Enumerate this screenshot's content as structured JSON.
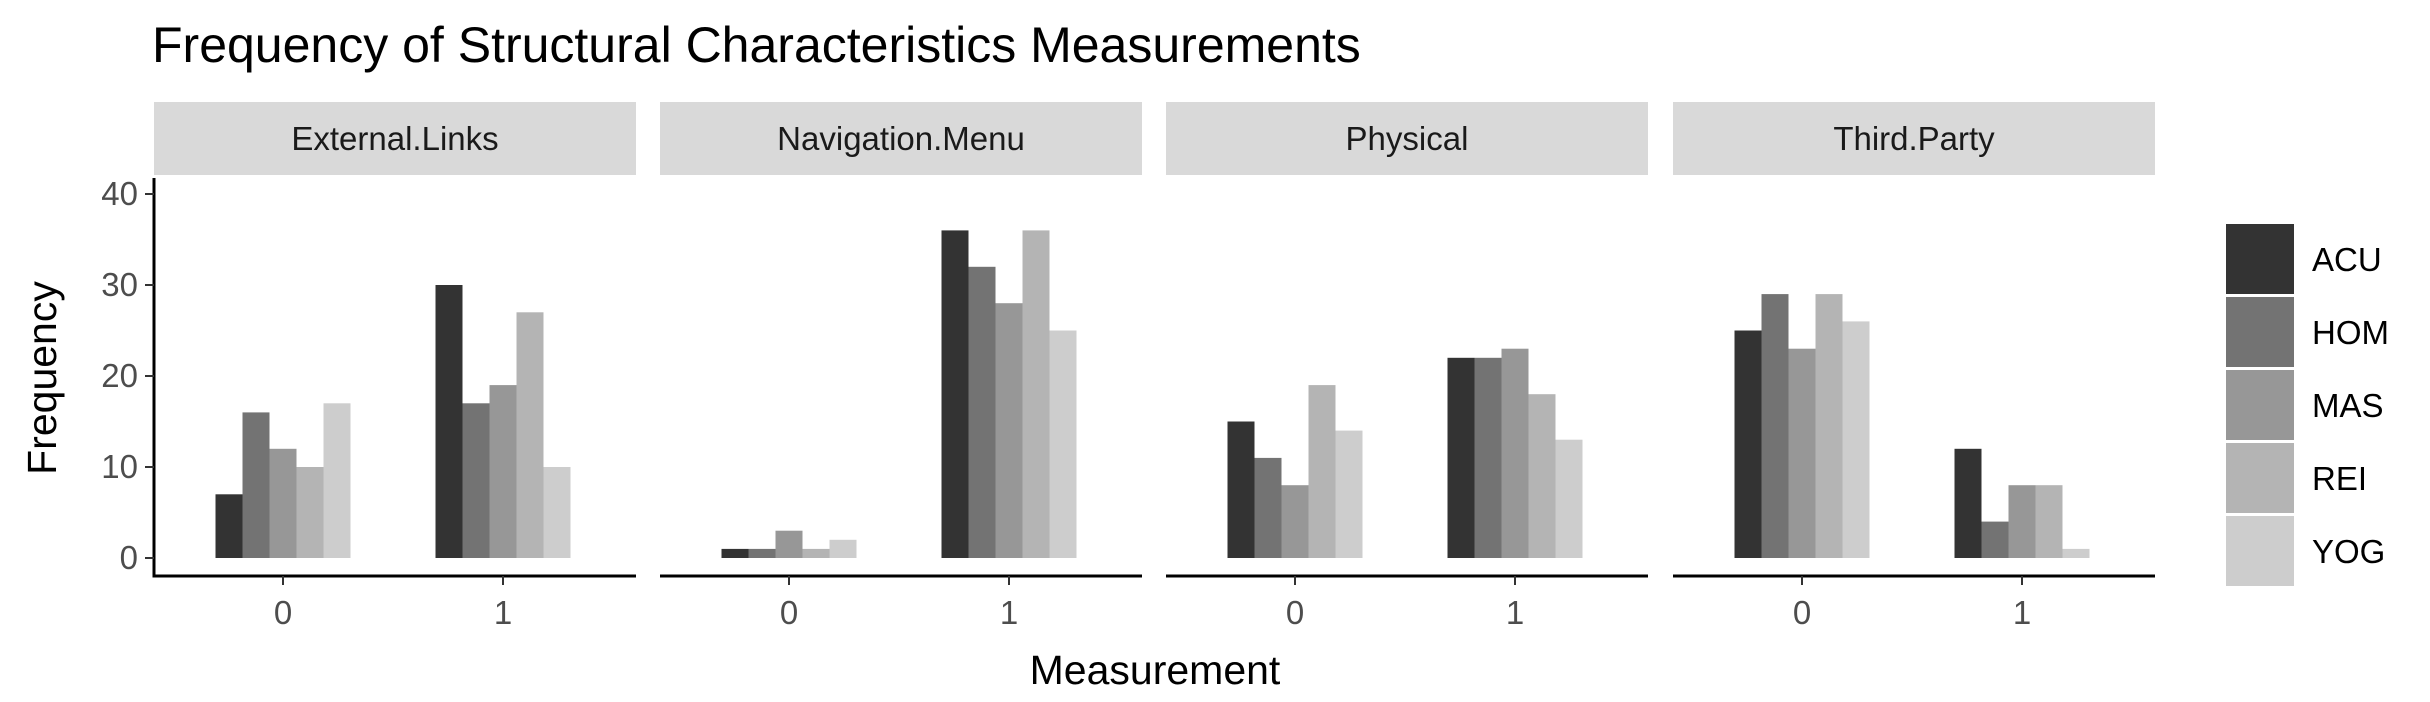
{
  "chart_data": {
    "type": "bar",
    "title": "Frequency of Structural Characteristics Measurements",
    "xlabel": "Measurement",
    "ylabel": "Frequency",
    "ylim": [
      0,
      40
    ],
    "yticks": [
      0,
      10,
      20,
      30,
      40
    ],
    "categories": [
      "0",
      "1"
    ],
    "grid": false,
    "legend_position": "right",
    "legend": [
      {
        "name": "ACU",
        "color": "#333333"
      },
      {
        "name": "HOM",
        "color": "#737373"
      },
      {
        "name": "MAS",
        "color": "#979797"
      },
      {
        "name": "REI",
        "color": "#b4b4b4"
      },
      {
        "name": "YOG",
        "color": "#cdcdcd"
      }
    ],
    "panels": [
      {
        "name": "External.Links",
        "series": [
          {
            "name": "ACU",
            "values": [
              7,
              30
            ]
          },
          {
            "name": "HOM",
            "values": [
              16,
              17
            ]
          },
          {
            "name": "MAS",
            "values": [
              12,
              19
            ]
          },
          {
            "name": "REI",
            "values": [
              10,
              27
            ]
          },
          {
            "name": "YOG",
            "values": [
              17,
              10
            ]
          }
        ]
      },
      {
        "name": "Navigation.Menu",
        "series": [
          {
            "name": "ACU",
            "values": [
              1,
              36
            ]
          },
          {
            "name": "HOM",
            "values": [
              1,
              32
            ]
          },
          {
            "name": "MAS",
            "values": [
              3,
              28
            ]
          },
          {
            "name": "REI",
            "values": [
              1,
              36
            ]
          },
          {
            "name": "YOG",
            "values": [
              2,
              25
            ]
          }
        ]
      },
      {
        "name": "Physical",
        "series": [
          {
            "name": "ACU",
            "values": [
              15,
              22
            ]
          },
          {
            "name": "HOM",
            "values": [
              11,
              22
            ]
          },
          {
            "name": "MAS",
            "values": [
              8,
              23
            ]
          },
          {
            "name": "REI",
            "values": [
              19,
              18
            ]
          },
          {
            "name": "YOG",
            "values": [
              14,
              13
            ]
          }
        ]
      },
      {
        "name": "Third.Party",
        "series": [
          {
            "name": "ACU",
            "values": [
              25,
              12
            ]
          },
          {
            "name": "HOM",
            "values": [
              29,
              4
            ]
          },
          {
            "name": "MAS",
            "values": [
              23,
              8
            ]
          },
          {
            "name": "REI",
            "values": [
              29,
              8
            ]
          },
          {
            "name": "YOG",
            "values": [
              26,
              1
            ]
          }
        ]
      }
    ]
  }
}
